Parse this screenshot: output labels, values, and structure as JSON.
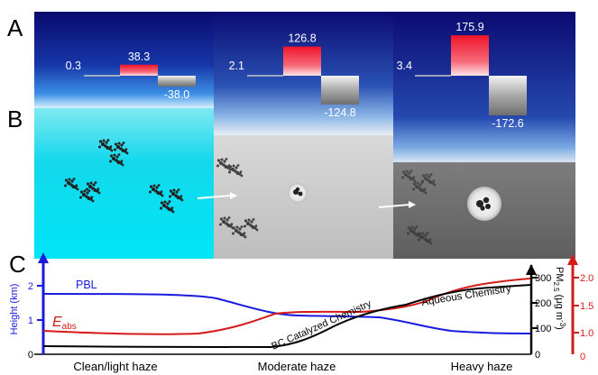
{
  "panels": {
    "a": "A",
    "b": "B",
    "c": "C"
  },
  "panel_a": {
    "columns": [
      {
        "small": "0.3",
        "up": "38.3",
        "down": "-38.0",
        "small_v": 0.3,
        "up_v": 38.3,
        "down_v": -38.0
      },
      {
        "small": "2.1",
        "up": "126.8",
        "down": "-124.8",
        "small_v": 2.1,
        "up_v": 126.8,
        "down_v": -124.8
      },
      {
        "small": "3.4",
        "up": "175.9",
        "down": "-172.6",
        "small_v": 3.4,
        "up_v": 175.9,
        "down_v": -172.6
      }
    ]
  },
  "panel_c": {
    "x_categories": [
      "Clean/light haze",
      "Moderate haze",
      "Heavy haze"
    ],
    "left_axis": {
      "label": "Height (km)",
      "ticks": [
        "0",
        "1",
        "2"
      ],
      "color": "#1a1adf"
    },
    "right_axis_pm": {
      "label": "PM2.5 (μg m-3)",
      "label_main": "PM",
      "label_sub": "2.5",
      "label_unit": " (μg m",
      "label_exp": "-3",
      "label_close": ")",
      "ticks": [
        "0",
        "100",
        "200",
        "300"
      ],
      "color": "#000000"
    },
    "right_axis_eabs": {
      "ticks": [
        "0",
        "1.0",
        "1.5",
        "2.0"
      ],
      "color": "#d51a1a"
    },
    "labels": {
      "pbl": "PBL",
      "eabs_main": "E",
      "eabs_sub": "abs",
      "bc": "BC Catalyzed Chemistry",
      "aqueous": "Aqueous Chemistry"
    }
  },
  "colors": {
    "pbl": "#1a1adf",
    "eabs": "#d51a1a",
    "pm": "#000000"
  }
}
